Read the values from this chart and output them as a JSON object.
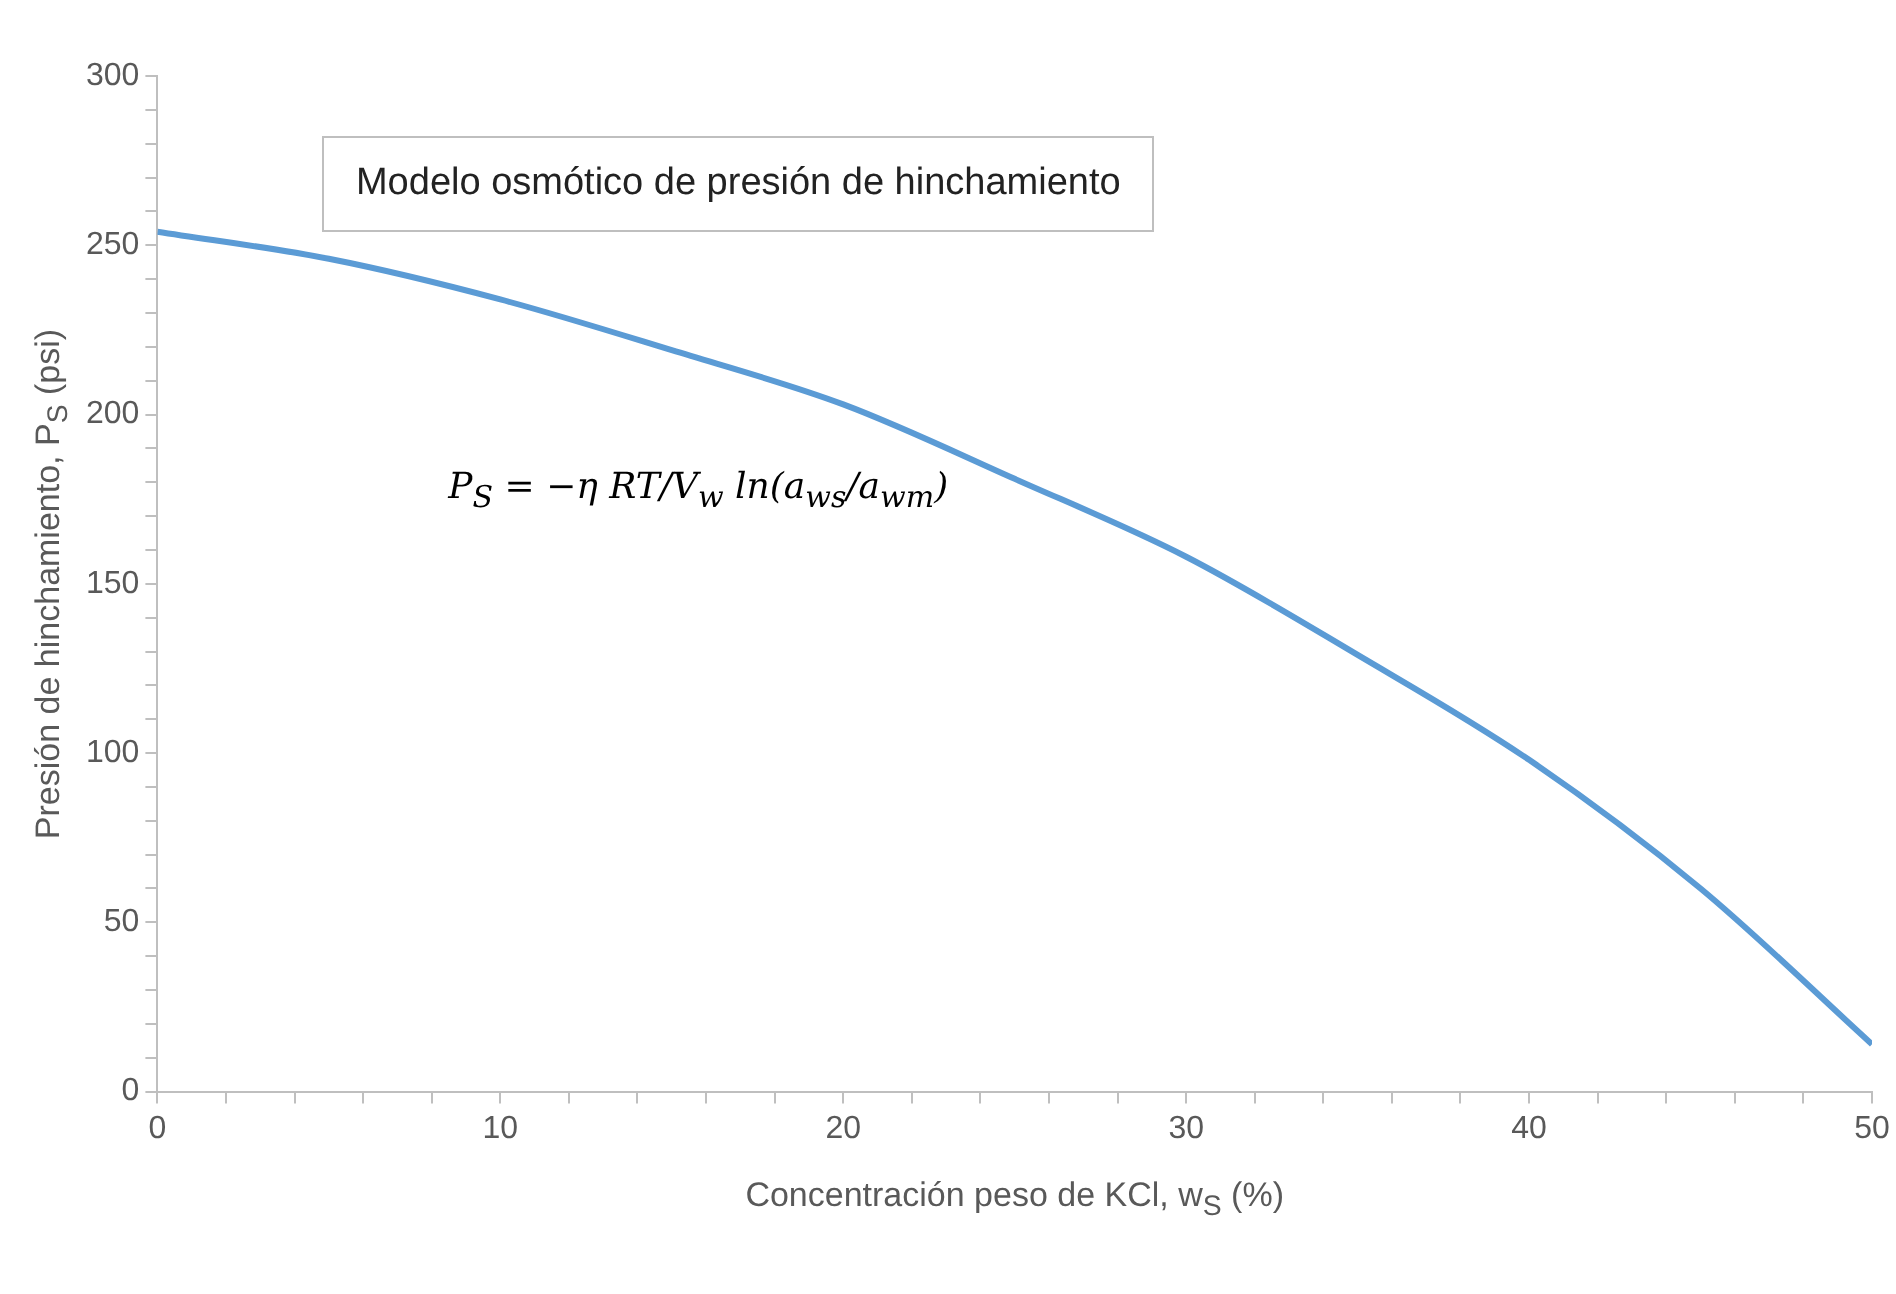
{
  "chart_data": {
    "type": "line",
    "title": "Modelo osmótico de presión de hinchamiento",
    "xlabel": "Concentración peso de KCl, w$_{S}$ (%)",
    "ylabel": "Presión de hinchamiento, P$_{S}$ (psi)",
    "annotations": [
      "P$_{S}$ = −η RT/V$_{w}$ ln(a$_{ws}$/a$_{wm}$)"
    ],
    "x": [
      0,
      5,
      10,
      15,
      20,
      25,
      30,
      35,
      40,
      45,
      50
    ],
    "series": [
      {
        "color": "#5b9bd5",
        "values": [
          254,
          246,
          234,
          219,
          203,
          181,
          158,
          129,
          98,
          60,
          14
        ]
      }
    ],
    "xlim": [
      0,
      50
    ],
    "ylim": [
      0,
      300
    ],
    "xticks": [
      0,
      {
        "value": 2,
        "label": null
      },
      {
        "value": 4,
        "label": null
      },
      {
        "value": 6,
        "label": null
      },
      {
        "value": 8,
        "label": null
      },
      10,
      {
        "value": 12,
        "label": null
      },
      {
        "value": 14,
        "label": null
      },
      {
        "value": 16,
        "label": null
      },
      {
        "value": 18,
        "label": null
      },
      20,
      {
        "value": 22,
        "label": null
      },
      {
        "value": 24,
        "label": null
      },
      {
        "value": 26,
        "label": null
      },
      {
        "value": 28,
        "label": null
      },
      30,
      {
        "value": 32,
        "label": null
      },
      {
        "value": 34,
        "label": null
      },
      {
        "value": 36,
        "label": null
      },
      {
        "value": 38,
        "label": null
      },
      40,
      {
        "value": 42,
        "label": null
      },
      {
        "value": 44,
        "label": null
      },
      {
        "value": 46,
        "label": null
      },
      {
        "value": 48,
        "label": null
      },
      50
    ],
    "yticks": [
      0,
      {
        "value": 10,
        "label": null
      },
      {
        "value": 20,
        "label": null
      },
      {
        "value": 30,
        "label": null
      },
      {
        "value": 40,
        "label": null
      },
      50,
      {
        "value": 60,
        "label": null
      },
      {
        "value": 70,
        "label": null
      },
      {
        "value": 80,
        "label": null
      },
      {
        "value": 90,
        "label": null
      },
      100,
      {
        "value": 110,
        "label": null
      },
      {
        "value": 120,
        "label": null
      },
      {
        "value": 130,
        "label": null
      },
      {
        "value": 140,
        "label": null
      },
      150,
      {
        "value": 160,
        "label": null
      },
      {
        "value": 170,
        "label": null
      },
      {
        "value": 180,
        "label": null
      },
      {
        "value": 190,
        "label": null
      },
      200,
      {
        "value": 210,
        "label": null
      },
      {
        "value": 220,
        "label": null
      },
      {
        "value": 230,
        "label": null
      },
      {
        "value": 240,
        "label": null
      },
      250,
      {
        "value": 260,
        "label": null
      },
      {
        "value": 270,
        "label": null
      },
      {
        "value": 280,
        "label": null
      },
      {
        "value": 290,
        "label": null
      },
      300
    ],
    "grid": false,
    "legend": false,
    "marker": "none",
    "line_style": "solid"
  }
}
